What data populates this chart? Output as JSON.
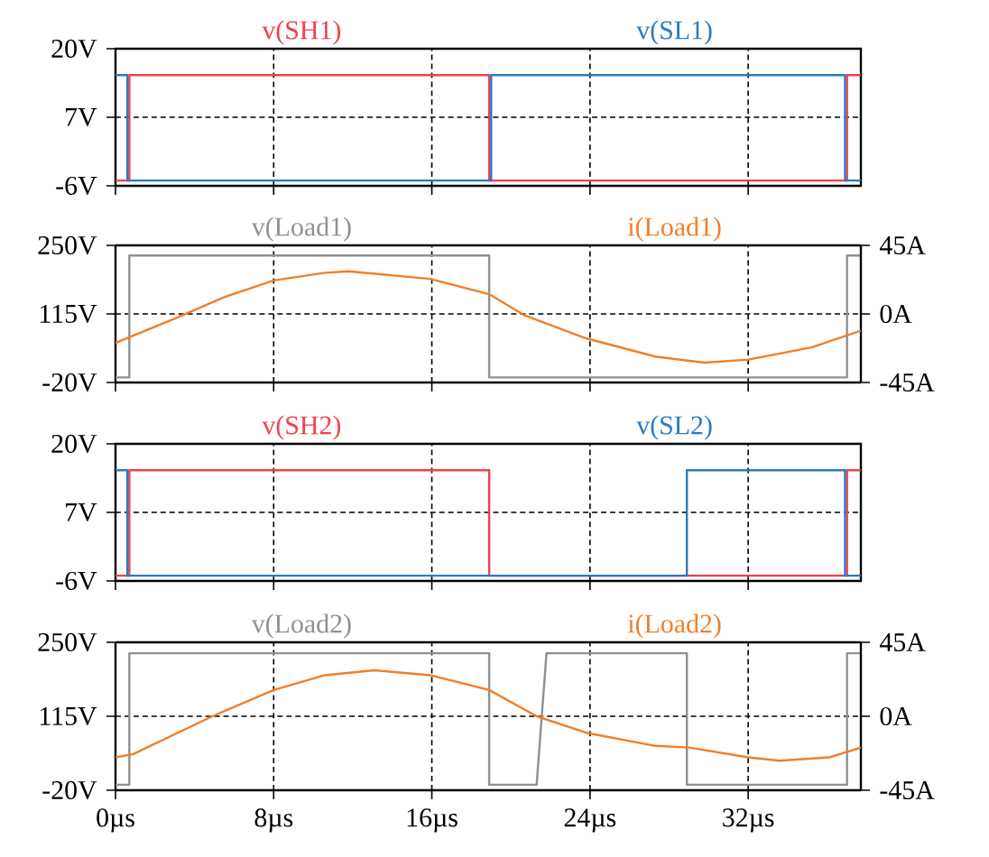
{
  "chart_data": [
    {
      "type": "line",
      "xlim": [
        0,
        37.7
      ],
      "xticks": [
        0,
        8,
        16,
        24,
        32
      ],
      "ylim": [
        -6,
        20
      ],
      "yticks": [
        {
          "value": -6,
          "label": "-6V"
        },
        {
          "value": 7,
          "label": "7V"
        },
        {
          "value": 20,
          "label": "20V"
        }
      ],
      "grid": true,
      "legend": "top",
      "tick_labels": "y",
      "series": [
        {
          "name": "v(SH1)",
          "color": "#f0404c",
          "x": [
            0,
            0.7,
            0.7,
            18.9,
            18.9,
            37,
            37,
            37.7
          ],
          "values": [
            -5,
            -5,
            15,
            15,
            -5,
            -5,
            15,
            15
          ]
        },
        {
          "name": "v(SL1)",
          "color": "#2b7bbf",
          "x": [
            0,
            0.6,
            0.6,
            19,
            19,
            36.9,
            36.9,
            37.7
          ],
          "values": [
            15,
            15,
            -5,
            -5,
            15,
            15,
            -5,
            -5
          ]
        }
      ]
    },
    {
      "type": "line",
      "xlim": [
        0,
        37.7
      ],
      "xticks": [
        0,
        8,
        16,
        24,
        32
      ],
      "ylim": [
        -20,
        250
      ],
      "yticks": [
        {
          "value": -20,
          "label": "-20V"
        },
        {
          "value": 115,
          "label": "115V"
        },
        {
          "value": 250,
          "label": "250V"
        }
      ],
      "y2lim": [
        -45,
        45
      ],
      "y2ticks": [
        {
          "value": -45,
          "label": "-45A"
        },
        {
          "value": 0,
          "label": "0A"
        },
        {
          "value": 45,
          "label": "45A"
        }
      ],
      "grid": true,
      "legend": "top",
      "tick_labels": "y",
      "series": [
        {
          "name": "v(Load1)",
          "color": "#909090",
          "x": [
            0,
            0.7,
            0.7,
            18.9,
            18.9,
            37,
            37,
            37.7
          ],
          "values": [
            -10,
            -10,
            230,
            230,
            -10,
            -10,
            230,
            230
          ]
        },
        {
          "name": "i(Load1)",
          "color": "#f07f28",
          "axis": "y2",
          "x": [
            0,
            3,
            5.5,
            8,
            10.6,
            11.8,
            15.9,
            18.9,
            20.7,
            23.8,
            27.3,
            29.8,
            32,
            35.2,
            37.7
          ],
          "values": [
            -19,
            -3,
            11,
            22,
            27,
            28,
            23,
            13,
            -1,
            -16,
            -28,
            -32,
            -30,
            -22,
            -11
          ]
        }
      ]
    },
    {
      "type": "line",
      "xlim": [
        0,
        37.7
      ],
      "xticks": [
        0,
        8,
        16,
        24,
        32
      ],
      "ylim": [
        -6,
        20
      ],
      "yticks": [
        {
          "value": -6,
          "label": "-6V"
        },
        {
          "value": 7,
          "label": "7V"
        },
        {
          "value": 20,
          "label": "20V"
        }
      ],
      "grid": true,
      "legend": "top",
      "tick_labels": "y",
      "series": [
        {
          "name": "v(SH2)",
          "color": "#f0404c",
          "x": [
            0,
            0.7,
            0.7,
            18.9,
            18.9,
            37,
            37,
            37.7
          ],
          "values": [
            -5,
            -5,
            15,
            15,
            -5,
            -5,
            15,
            15
          ]
        },
        {
          "name": "v(SL2)",
          "color": "#2b7bbf",
          "x": [
            0,
            0.6,
            0.6,
            28.9,
            28.9,
            36.9,
            36.9,
            37.7
          ],
          "values": [
            15,
            15,
            -5,
            -5,
            15,
            15,
            -5,
            -5
          ]
        }
      ]
    },
    {
      "type": "line",
      "xlim": [
        0,
        37.7
      ],
      "xticks": [
        {
          "value": 0,
          "label": "0µs"
        },
        {
          "value": 8,
          "label": "8µs"
        },
        {
          "value": 16,
          "label": "16µs"
        },
        {
          "value": 24,
          "label": "24µs"
        },
        {
          "value": 32,
          "label": "32µs"
        }
      ],
      "ylim": [
        -20,
        250
      ],
      "yticks": [
        {
          "value": -20,
          "label": "-20V"
        },
        {
          "value": 115,
          "label": "115V"
        },
        {
          "value": 250,
          "label": "250V"
        }
      ],
      "y2lim": [
        -45,
        45
      ],
      "y2ticks": [
        {
          "value": -45,
          "label": "-45A"
        },
        {
          "value": 0,
          "label": "0A"
        },
        {
          "value": 45,
          "label": "45A"
        }
      ],
      "grid": true,
      "legend": "top",
      "series": [
        {
          "name": "v(Load2)",
          "color": "#909090",
          "x": [
            0,
            0.7,
            0.7,
            18.9,
            18.9,
            21.3,
            21.8,
            28.9,
            28.9,
            37,
            37,
            37.7
          ],
          "values": [
            -10,
            -10,
            230,
            230,
            -10,
            -10,
            230,
            230,
            -10,
            -10,
            230,
            230
          ]
        },
        {
          "name": "i(Load2)",
          "color": "#f07f28",
          "axis": "y2",
          "x": [
            0,
            0.9,
            4.9,
            8,
            10.6,
            13.1,
            15.9,
            18.9,
            21.3,
            23.8,
            27.3,
            29,
            32,
            33.6,
            36.1,
            37.7
          ],
          "values": [
            -25,
            -23,
            0,
            16,
            25,
            28,
            25,
            16,
            0,
            -10,
            -18,
            -19,
            -25,
            -27,
            -25,
            -19
          ]
        }
      ]
    }
  ]
}
